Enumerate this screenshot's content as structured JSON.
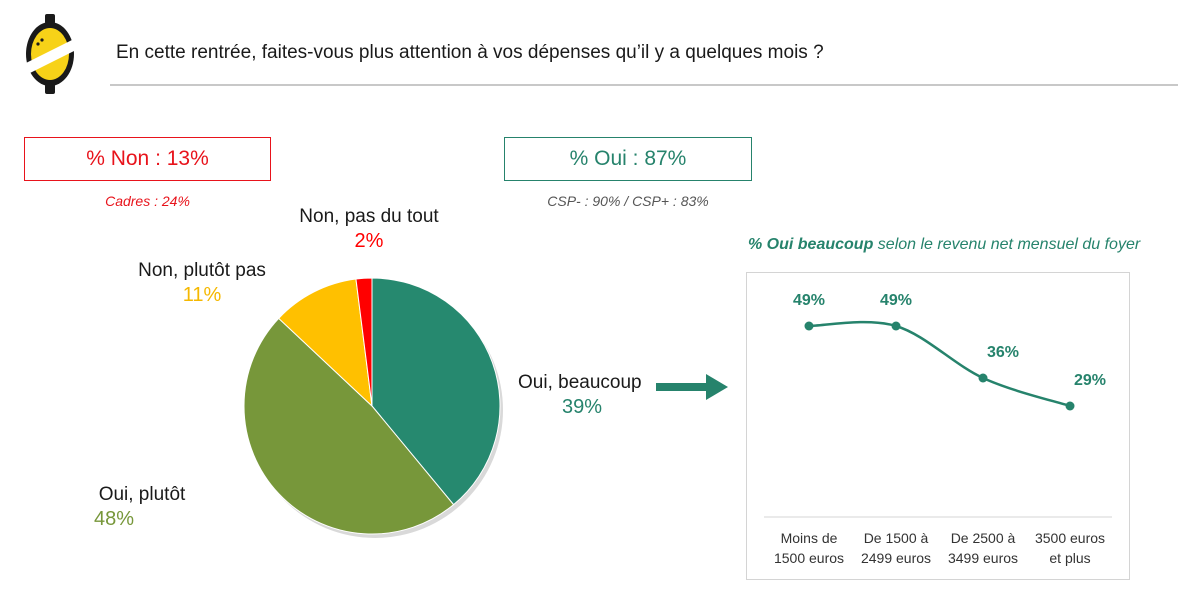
{
  "header": {
    "question": "En cette rentrée, faites-vous plus attention à vos dépenses qu’il y a quelques mois ?"
  },
  "summary": {
    "non_label": "% Non : 13%",
    "non_note": "Cadres : 24%",
    "oui_label": "% Oui : 87%",
    "oui_note": "CSP- : 90% / CSP+ : 83%"
  },
  "line_title": {
    "bold": "% Oui beaucoup",
    "rest": " selon le revenu net mensuel du foyer"
  },
  "colors": {
    "oui_beaucoup": "#26896f",
    "oui_plutot": "#77973a",
    "non_plutot_pas": "#ffc000",
    "non_pas_du_tout": "#ff0000",
    "logo_yellow": "#f7d218",
    "line": "#26836c"
  },
  "chart_data": [
    {
      "type": "pie",
      "slices": [
        {
          "label": "Oui, beaucoup",
          "value": 39,
          "display": "39%"
        },
        {
          "label": "Oui, plutôt",
          "value": 48,
          "display": "48%"
        },
        {
          "label": "Non, plutôt pas",
          "value": 11,
          "display": "11%"
        },
        {
          "label": "Non, pas du tout",
          "value": 2,
          "display": "2%"
        }
      ]
    },
    {
      "type": "line",
      "title": "% Oui beaucoup selon le revenu net mensuel du foyer",
      "categories": [
        "Moins de 1500 euros",
        "De 1500 à 2499 euros",
        "De 2500 à 3499 euros",
        "3500 euros et plus"
      ],
      "category_lines": [
        [
          "Moins de",
          "1500 euros"
        ],
        [
          "De 1500 à",
          "2499 euros"
        ],
        [
          "De 2500 à",
          "3499 euros"
        ],
        [
          "3500 euros",
          "et plus"
        ]
      ],
      "values": [
        49,
        49,
        36,
        29
      ],
      "labels": [
        "49%",
        "49%",
        "36%",
        "29%"
      ],
      "ylim": [
        0,
        60
      ],
      "grid": false
    }
  ]
}
